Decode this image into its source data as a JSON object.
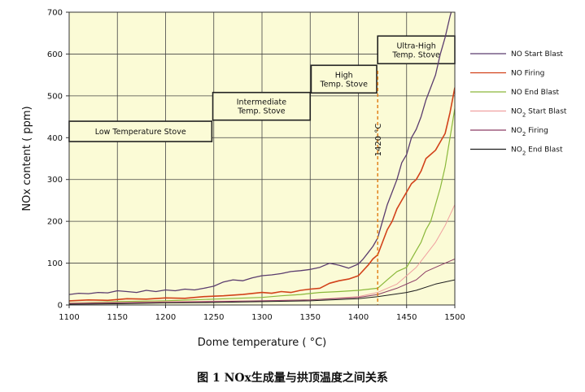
{
  "caption": "图 1   NOx生成量与拱顶温度之间关系",
  "chart_data": {
    "type": "line",
    "title": "",
    "xlabel": "Dome temperature ( °C)",
    "ylabel": "NOx content ( ppm)",
    "xlim": [
      1100,
      1500
    ],
    "ylim": [
      0,
      700
    ],
    "xticks": [
      1100,
      1150,
      1200,
      1250,
      1300,
      1350,
      1400,
      1450,
      1500
    ],
    "yticks": [
      0,
      100,
      200,
      300,
      400,
      500,
      600,
      700
    ],
    "grid": true,
    "legend_position": "right",
    "zones": [
      {
        "label": "Low Temperature Stove",
        "x_start": 1100,
        "x_end": 1248,
        "y_center": 415
      },
      {
        "label": "Intermediate Temp. Stove",
        "x_start": 1249,
        "x_end": 1350,
        "y_center": 475
      },
      {
        "label": "High Temp. Stove",
        "x_start": 1351,
        "x_end": 1419,
        "y_center": 540
      },
      {
        "label": "Ultra-High Temp. Stove",
        "x_start": 1420,
        "x_end": 1500,
        "y_center": 610
      }
    ],
    "annotations": [
      {
        "text": "1420 °C",
        "x": 1420
      }
    ],
    "series": [
      {
        "name": "NO Start Blast",
        "color": "#5a3c6e",
        "width": 1.3,
        "x": [
          1100,
          1110,
          1120,
          1130,
          1140,
          1150,
          1160,
          1170,
          1180,
          1190,
          1200,
          1210,
          1220,
          1230,
          1240,
          1250,
          1260,
          1270,
          1280,
          1290,
          1300,
          1310,
          1320,
          1330,
          1340,
          1350,
          1360,
          1370,
          1380,
          1390,
          1400,
          1405,
          1410,
          1415,
          1420,
          1425,
          1430,
          1435,
          1440,
          1445,
          1450,
          1455,
          1460,
          1465,
          1470,
          1475,
          1480,
          1485,
          1490,
          1495,
          1500
        ],
        "y": [
          25,
          28,
          27,
          30,
          29,
          34,
          32,
          30,
          35,
          32,
          36,
          34,
          38,
          36,
          40,
          45,
          55,
          60,
          58,
          65,
          70,
          72,
          75,
          80,
          82,
          85,
          90,
          100,
          95,
          88,
          98,
          110,
          125,
          140,
          160,
          200,
          240,
          270,
          300,
          340,
          360,
          400,
          420,
          450,
          490,
          520,
          550,
          600,
          640,
          690,
          730
        ]
      },
      {
        "name": "NO Firing",
        "color": "#d2421a",
        "width": 1.6,
        "x": [
          1100,
          1120,
          1140,
          1160,
          1180,
          1200,
          1220,
          1240,
          1260,
          1280,
          1300,
          1310,
          1320,
          1330,
          1340,
          1350,
          1360,
          1370,
          1380,
          1390,
          1400,
          1410,
          1415,
          1420,
          1425,
          1430,
          1435,
          1440,
          1445,
          1450,
          1455,
          1460,
          1465,
          1470,
          1475,
          1480,
          1485,
          1490,
          1495,
          1500
        ],
        "y": [
          10,
          12,
          11,
          15,
          14,
          17,
          16,
          20,
          22,
          25,
          30,
          28,
          32,
          30,
          35,
          38,
          40,
          52,
          58,
          62,
          70,
          95,
          110,
          120,
          150,
          180,
          200,
          230,
          250,
          270,
          290,
          300,
          320,
          350,
          360,
          370,
          390,
          410,
          460,
          520
        ]
      },
      {
        "name": "NO End Blast",
        "color": "#8ab83a",
        "width": 1.2,
        "x": [
          1100,
          1150,
          1200,
          1250,
          1300,
          1320,
          1340,
          1360,
          1380,
          1400,
          1420,
          1430,
          1440,
          1450,
          1455,
          1460,
          1465,
          1470,
          1475,
          1480,
          1485,
          1490,
          1495,
          1500
        ],
        "y": [
          5,
          8,
          10,
          14,
          18,
          22,
          25,
          30,
          32,
          35,
          40,
          60,
          80,
          90,
          110,
          130,
          150,
          180,
          200,
          240,
          280,
          330,
          400,
          470
        ]
      },
      {
        "name": "NO2 Start Blast",
        "color": "#f0a0a0",
        "width": 1.0,
        "x": [
          1100,
          1150,
          1200,
          1250,
          1300,
          1350,
          1400,
          1420,
          1440,
          1450,
          1460,
          1470,
          1480,
          1490,
          1500
        ],
        "y": [
          5,
          6,
          8,
          9,
          10,
          12,
          20,
          30,
          50,
          70,
          90,
          120,
          150,
          190,
          240
        ]
      },
      {
        "name": "NO2 Firing",
        "color": "#8c3c64",
        "width": 1.0,
        "x": [
          1100,
          1150,
          1200,
          1250,
          1300,
          1350,
          1400,
          1420,
          1440,
          1460,
          1470,
          1480,
          1490,
          1500
        ],
        "y": [
          3,
          5,
          6,
          8,
          10,
          12,
          18,
          25,
          40,
          60,
          80,
          90,
          100,
          110
        ]
      },
      {
        "name": "NO2 End Blast",
        "color": "#1e1e1e",
        "width": 1.0,
        "x": [
          1100,
          1150,
          1200,
          1250,
          1300,
          1350,
          1400,
          1420,
          1450,
          1460,
          1480,
          1500
        ],
        "y": [
          2,
          3,
          5,
          6,
          8,
          10,
          15,
          20,
          30,
          35,
          50,
          60
        ]
      }
    ]
  }
}
